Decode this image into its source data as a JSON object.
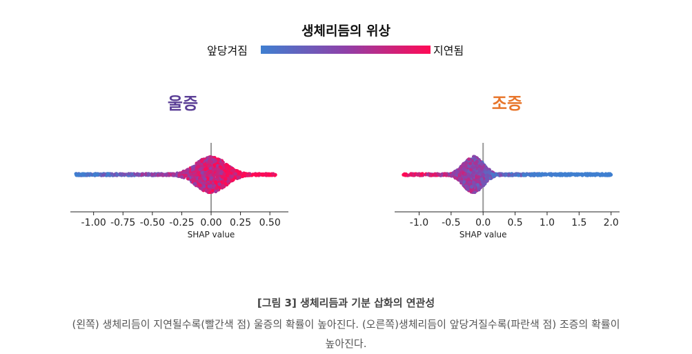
{
  "legend": {
    "title": "생체리듬의 위상",
    "low_label": "앞당겨짐",
    "high_label": "지연됨",
    "low_color": "#3f7fd0",
    "high_color": "#ff0a55"
  },
  "chart_data": [
    {
      "type": "scatter",
      "subtype": "beeswarm",
      "title": "울증",
      "title_color": "#5b3f96",
      "xlabel": "SHAP value",
      "xlim": [
        -1.18,
        0.64
      ],
      "ticks": [
        -1.0,
        -0.75,
        -0.5,
        -0.25,
        0.0,
        0.25,
        0.5
      ],
      "tick_labels": [
        "-1.00",
        "-0.75",
        "-0.50",
        "-0.25",
        "0.00",
        "0.25",
        "0.50"
      ],
      "zero_line": 0.0,
      "density_peak": 0.0,
      "range": [
        -1.15,
        0.55
      ],
      "trend": "red points (delayed) toward positive SHAP, blue points (advanced) toward negative SHAP"
    },
    {
      "type": "scatter",
      "subtype": "beeswarm",
      "title": "조증",
      "title_color": "#e8762c",
      "xlabel": "SHAP value",
      "xlim": [
        -1.35,
        2.1
      ],
      "ticks": [
        -1.0,
        -0.5,
        0.0,
        0.5,
        1.0,
        1.5,
        2.0
      ],
      "tick_labels": [
        "-1.0",
        "-0.5",
        "0.0",
        "0.5",
        "1.0",
        "1.5",
        "2.0"
      ],
      "zero_line": 0.0,
      "density_peak": -0.15,
      "range": [
        -1.25,
        2.0
      ],
      "trend": "blue points (advanced) toward positive SHAP, red points (delayed) toward negative SHAP"
    }
  ],
  "caption": {
    "title": "[그림 3] 생체리듬과 기분 삽화의 연관성",
    "line1": "(왼쪽) 생체리듬이 지연될수록(빨간색 점) 울증의 확률이 높아진다. (오른쪽)생체리듬이 앞당겨질수록(파란색 점) 조증의 확률이",
    "line2": "높아진다."
  }
}
